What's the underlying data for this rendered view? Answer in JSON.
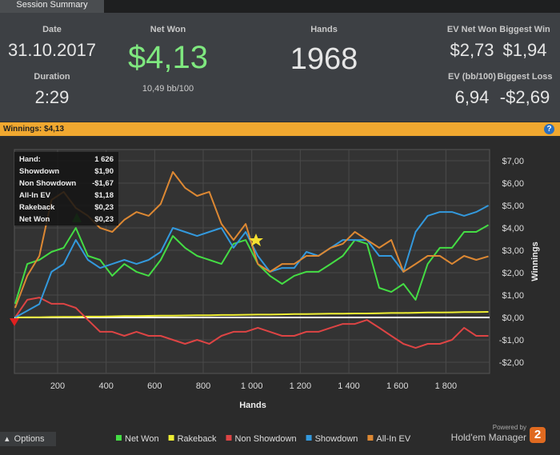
{
  "tab": "Session Summary",
  "summary": {
    "date": {
      "label": "Date",
      "value": "31.10.2017"
    },
    "duration": {
      "label": "Duration",
      "value": "2:29"
    },
    "net_won": {
      "label": "Net Won",
      "value": "$4,13",
      "sub": "10,49 bb/100"
    },
    "hands": {
      "label": "Hands",
      "value": "1968"
    },
    "ev_net_won": {
      "label": "EV Net Won",
      "value": "$2,73"
    },
    "biggest_win": {
      "label": "Biggest Win",
      "value": "$1,94"
    },
    "ev_bb": {
      "label": "EV (bb/100)",
      "value": "6,94"
    },
    "biggest_loss": {
      "label": "Biggest Loss",
      "value": "-$2,69"
    }
  },
  "bar": {
    "label": "Winnings:",
    "value": "$4,13",
    "help": "?"
  },
  "tooltip": [
    [
      "Hand:",
      "1 626"
    ],
    [
      "Showdown",
      "$1,90"
    ],
    [
      "Non Showdown",
      "-$1,67"
    ],
    [
      "All-In EV",
      "$1,18"
    ],
    [
      "Rakeback",
      "$0,23"
    ],
    [
      "Net Won",
      "$0,23"
    ]
  ],
  "footer": {
    "options": "Options",
    "powered": "Powered by",
    "brand": "Hold'em Manager",
    "logo": "2"
  },
  "chart_data": {
    "type": "line",
    "x_label": "Hands",
    "y_label": "Winnings",
    "xlim": [
      22,
      1980
    ],
    "ylim": [
      -2.5,
      7.5
    ],
    "grid": true,
    "xticks": [
      200,
      400,
      600,
      800,
      {
        "value": 1000,
        "label": "1 000"
      },
      {
        "value": 1200,
        "label": "1 200"
      },
      {
        "value": 1400,
        "label": "1 400"
      },
      {
        "value": 1600,
        "label": "1 600"
      },
      {
        "value": 1800,
        "label": "1 800"
      }
    ],
    "yticks": [
      {
        "value": -2,
        "label": "-$2,00"
      },
      {
        "value": -1,
        "label": "-$1,00"
      },
      {
        "value": 0,
        "label": "$0,00"
      },
      {
        "value": 1,
        "label": "$1,00"
      },
      {
        "value": 2,
        "label": "$2,00"
      },
      {
        "value": 3,
        "label": "$3,00"
      },
      {
        "value": 4,
        "label": "$4,00"
      },
      {
        "value": 5,
        "label": "$5,00"
      },
      {
        "value": 6,
        "label": "$6,00"
      },
      {
        "value": 7,
        "label": "$7,00"
      }
    ],
    "x": [
      25,
      75,
      125,
      175,
      225,
      275,
      325,
      375,
      425,
      475,
      525,
      575,
      625,
      675,
      725,
      775,
      825,
      875,
      925,
      975,
      1025,
      1075,
      1125,
      1175,
      1225,
      1275,
      1325,
      1375,
      1425,
      1475,
      1525,
      1575,
      1625,
      1675,
      1725,
      1775,
      1825,
      1875,
      1925,
      1975
    ],
    "series": [
      {
        "name": "Net Won",
        "color": "#44dd44",
        "values": [
          0.61,
          2.39,
          2.57,
          2.93,
          3.11,
          4.0,
          2.75,
          2.57,
          1.86,
          2.39,
          2.04,
          1.86,
          2.57,
          3.64,
          3.11,
          2.75,
          2.57,
          2.39,
          3.29,
          3.46,
          2.39,
          1.86,
          1.5,
          1.86,
          2.04,
          2.04,
          2.39,
          2.75,
          3.46,
          3.29,
          1.32,
          1.14,
          1.5,
          0.79,
          2.39,
          3.11,
          3.11,
          3.82,
          3.82,
          4.13
        ]
      },
      {
        "name": "Rakeback",
        "color": "#eeee33",
        "values": [
          0,
          0.01,
          0.01,
          0.02,
          0.03,
          0.03,
          0.04,
          0.04,
          0.05,
          0.06,
          0.06,
          0.07,
          0.08,
          0.08,
          0.09,
          0.1,
          0.1,
          0.11,
          0.11,
          0.12,
          0.13,
          0.13,
          0.14,
          0.15,
          0.15,
          0.16,
          0.17,
          0.17,
          0.18,
          0.18,
          0.19,
          0.2,
          0.2,
          0.21,
          0.22,
          0.22,
          0.23,
          0.24,
          0.24,
          0.25
        ]
      },
      {
        "name": "Non Showdown",
        "color": "#dd4444",
        "values": [
          0,
          0.79,
          0.89,
          0.61,
          0.61,
          0.43,
          -0.11,
          -0.64,
          -0.64,
          -0.82,
          -0.64,
          -0.82,
          -0.82,
          -1.0,
          -1.18,
          -1.0,
          -1.18,
          -0.82,
          -0.64,
          -0.64,
          -0.46,
          -0.64,
          -0.82,
          -0.82,
          -0.64,
          -0.64,
          -0.46,
          -0.29,
          -0.29,
          -0.11,
          -0.46,
          -0.82,
          -1.18,
          -1.36,
          -1.18,
          -1.18,
          -1.0,
          -0.46,
          -0.82,
          -0.82
        ]
      },
      {
        "name": "Showdown",
        "color": "#3399dd",
        "values": [
          0,
          0.3,
          0.6,
          2.04,
          2.39,
          3.46,
          2.57,
          2.21,
          2.39,
          2.57,
          2.39,
          2.57,
          2.93,
          4.0,
          3.82,
          3.64,
          3.82,
          4.0,
          3.11,
          3.82,
          2.75,
          2.04,
          2.21,
          2.21,
          2.93,
          2.75,
          3.11,
          3.46,
          3.46,
          3.46,
          2.75,
          2.75,
          2.04,
          3.82,
          4.54,
          4.71,
          4.71,
          4.54,
          4.71,
          5.0
        ]
      },
      {
        "name": "All-In EV",
        "color": "#dd8833",
        "values": [
          0.43,
          1.86,
          2.75,
          5.25,
          5.61,
          4.89,
          4.54,
          4.0,
          3.82,
          4.36,
          4.71,
          4.54,
          5.07,
          6.5,
          5.79,
          5.43,
          5.61,
          4.18,
          3.46,
          4.18,
          2.39,
          2.04,
          2.39,
          2.39,
          2.75,
          2.75,
          3.11,
          3.29,
          3.82,
          3.46,
          3.11,
          3.46,
          2.04,
          2.39,
          2.75,
          2.75,
          2.39,
          2.75,
          2.57,
          2.73
        ]
      }
    ]
  }
}
